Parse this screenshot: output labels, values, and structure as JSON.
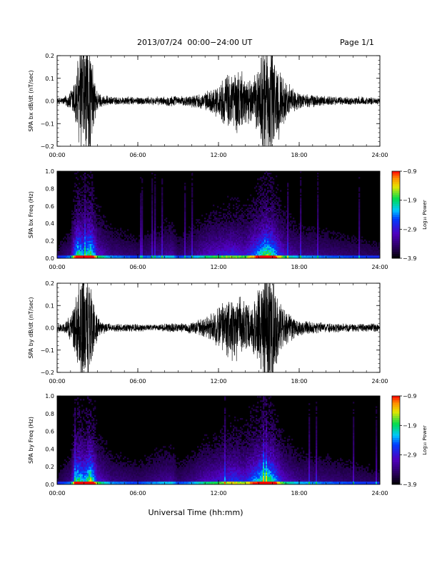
{
  "header": {
    "title": "2013/07/24  00:00−24:00 UT",
    "page": "Page 1/1"
  },
  "chart_data": [
    {
      "type": "line",
      "ylabel": "SPA bx dB/dt (nT/sec)",
      "xlabel": "",
      "xlim_hours": [
        0,
        24
      ],
      "ylim": [
        -0.2,
        0.2
      ],
      "xticks": [
        "00:00",
        "06:00",
        "12:00",
        "18:00",
        "24:00"
      ],
      "yticks": [
        "−0.2",
        "−0.1",
        "0.0",
        "0.1",
        "0.2"
      ],
      "envelope": {
        "x_hours": [
          0,
          0.5,
          1.0,
          1.3,
          1.5,
          1.8,
          2.1,
          2.4,
          2.7,
          3.0,
          3.3,
          4,
          5,
          6,
          7,
          8,
          8.5,
          9,
          10,
          11,
          11.5,
          12,
          12.5,
          13,
          13.5,
          14,
          14.5,
          15,
          15.3,
          15.6,
          16,
          16.3,
          16.6,
          17,
          17.5,
          18,
          19,
          20,
          21,
          22,
          23,
          24
        ],
        "amplitude": [
          0.015,
          0.02,
          0.05,
          0.12,
          0.2,
          0.3,
          0.3,
          0.3,
          0.15,
          0.05,
          0.03,
          0.02,
          0.02,
          0.02,
          0.02,
          0.02,
          0.03,
          0.02,
          0.03,
          0.04,
          0.06,
          0.08,
          0.12,
          0.15,
          0.16,
          0.12,
          0.1,
          0.18,
          0.3,
          0.3,
          0.3,
          0.22,
          0.15,
          0.1,
          0.06,
          0.04,
          0.03,
          0.025,
          0.02,
          0.02,
          0.02,
          0.015
        ]
      }
    },
    {
      "type": "heatmap",
      "ylabel": "SPA bx Freq (Hz)",
      "xlim_hours": [
        0,
        24
      ],
      "ylim": [
        0,
        1.0
      ],
      "xticks": [
        "00:00",
        "06:00",
        "12:00",
        "18:00",
        "24:00"
      ],
      "yticks": [
        "0.0",
        "0.2",
        "0.4",
        "0.6",
        "0.8",
        "1.0"
      ],
      "colorbar": {
        "label": "Log₁₀ Power",
        "ticks": [
          "−0.9",
          "−1.9",
          "−2.9",
          "−3.9"
        ],
        "range": [
          -3.9,
          -0.9
        ]
      },
      "activity_hours": [
        0,
        1,
        1.5,
        2,
        2.5,
        3,
        4,
        6,
        8.5,
        9,
        10,
        11,
        12,
        13,
        14,
        15,
        15.5,
        16,
        16.5,
        17,
        18,
        20,
        24
      ],
      "activity_level": [
        0.1,
        0.2,
        0.75,
        0.6,
        0.8,
        0.35,
        0.2,
        0.15,
        0.25,
        0.15,
        0.2,
        0.3,
        0.35,
        0.4,
        0.35,
        0.6,
        0.8,
        0.7,
        0.45,
        0.3,
        0.22,
        0.18,
        0.12
      ]
    },
    {
      "type": "line",
      "ylabel": "SPA by dB/dt (nT/sec)",
      "xlabel": "",
      "xlim_hours": [
        0,
        24
      ],
      "ylim": [
        -0.2,
        0.2
      ],
      "xticks": [
        "00:00",
        "06:00",
        "12:00",
        "18:00",
        "24:00"
      ],
      "yticks": [
        "−0.2",
        "−0.1",
        "0.0",
        "0.1",
        "0.2"
      ],
      "envelope": {
        "x_hours": [
          0,
          0.5,
          1.0,
          1.3,
          1.5,
          1.8,
          2.1,
          2.4,
          2.7,
          3.0,
          3.3,
          4,
          5,
          6,
          7,
          8,
          8.5,
          9,
          10,
          11,
          11.5,
          12,
          12.5,
          13,
          13.5,
          14,
          14.5,
          15,
          15.3,
          15.6,
          16,
          16.3,
          16.6,
          17,
          17.5,
          18,
          19,
          20,
          21,
          22,
          23,
          24
        ],
        "amplitude": [
          0.02,
          0.025,
          0.06,
          0.14,
          0.22,
          0.3,
          0.3,
          0.3,
          0.14,
          0.05,
          0.03,
          0.02,
          0.02,
          0.02,
          0.015,
          0.02,
          0.025,
          0.02,
          0.03,
          0.05,
          0.07,
          0.1,
          0.13,
          0.16,
          0.15,
          0.12,
          0.1,
          0.2,
          0.3,
          0.3,
          0.3,
          0.2,
          0.13,
          0.09,
          0.06,
          0.04,
          0.03,
          0.025,
          0.02,
          0.02,
          0.02,
          0.02
        ]
      }
    },
    {
      "type": "heatmap",
      "ylabel": "SPA by Freq (Hz)",
      "xlabel": "Universal Time (hh:mm)",
      "xlim_hours": [
        0,
        24
      ],
      "ylim": [
        0,
        1.0
      ],
      "xticks": [
        "00:00",
        "06:00",
        "12:00",
        "18:00",
        "24:00"
      ],
      "yticks": [
        "0.0",
        "0.2",
        "0.4",
        "0.6",
        "0.8",
        "1.0"
      ],
      "colorbar": {
        "label": "Log₁₀ Power",
        "ticks": [
          "−0.9",
          "−1.9",
          "−2.9",
          "−3.9"
        ],
        "range": [
          -3.9,
          -0.9
        ]
      },
      "activity_hours": [
        0,
        1,
        1.5,
        2,
        2.5,
        3,
        4,
        6,
        8.5,
        9,
        10,
        11,
        12,
        13,
        14,
        15,
        15.5,
        16,
        16.5,
        17,
        18,
        20,
        24
      ],
      "activity_level": [
        0.1,
        0.2,
        0.75,
        0.6,
        0.85,
        0.35,
        0.2,
        0.15,
        0.25,
        0.15,
        0.2,
        0.3,
        0.35,
        0.45,
        0.4,
        0.65,
        0.8,
        0.7,
        0.45,
        0.3,
        0.22,
        0.18,
        0.12
      ]
    }
  ]
}
